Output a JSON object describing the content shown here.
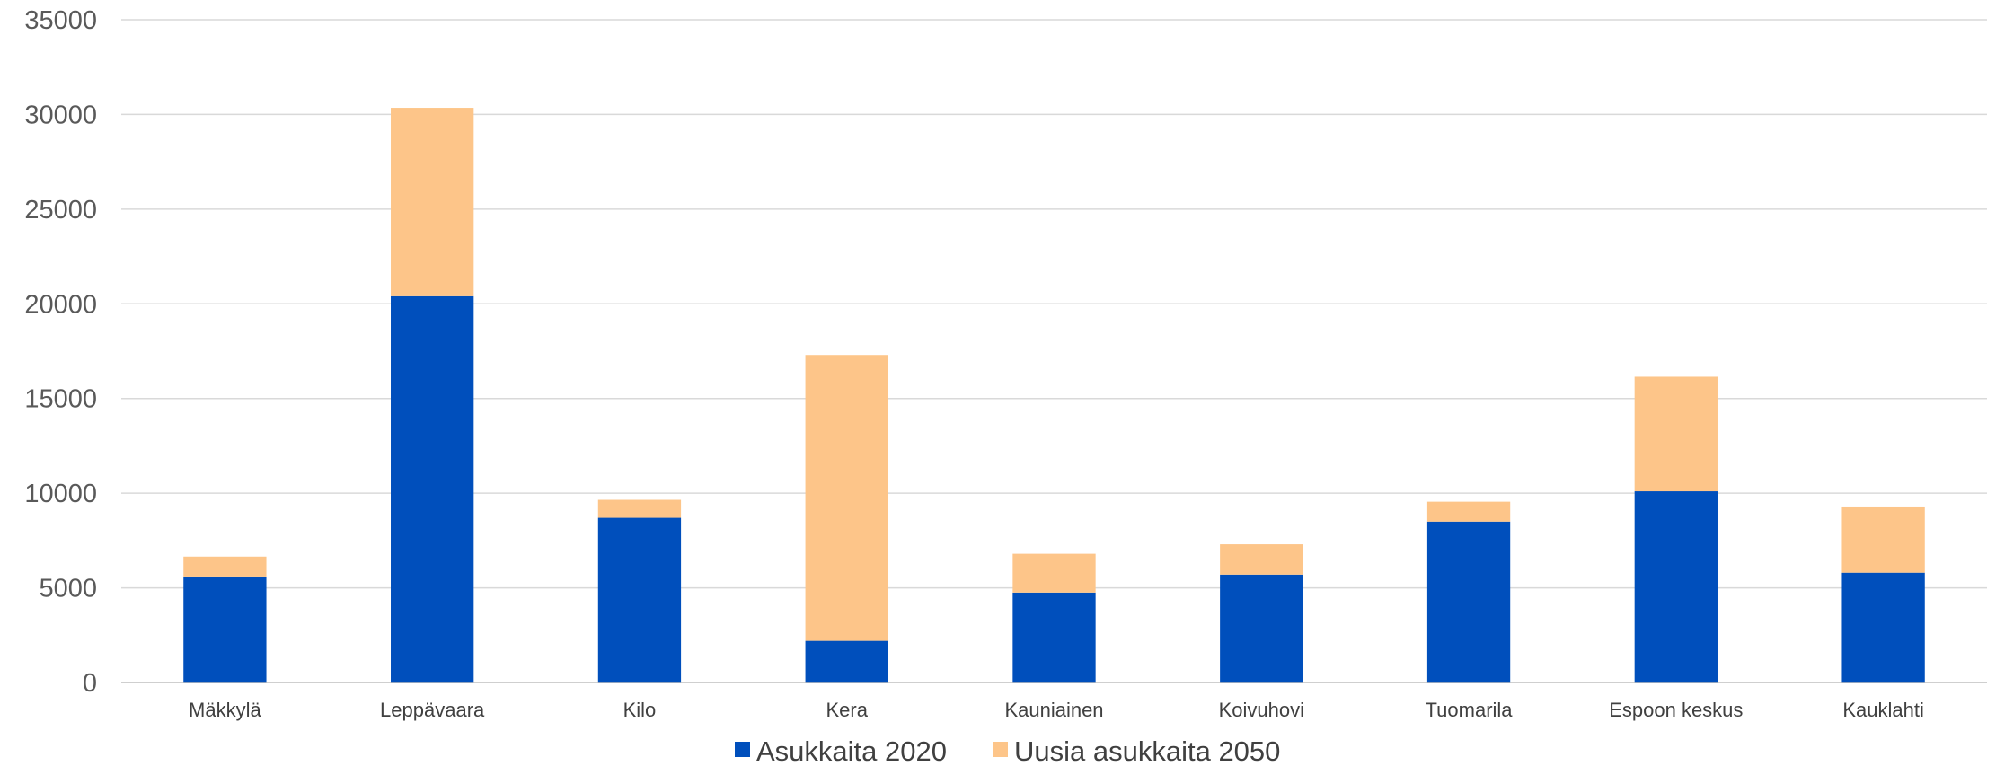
{
  "chart_data": {
    "type": "bar",
    "stacked": true,
    "categories": [
      "Mäkkylä",
      "Leppävaara",
      "Kilo",
      "Kera",
      "Kauniainen",
      "Koivuhovi",
      "Tuomarila",
      "Espoon keskus",
      "Kauklahti"
    ],
    "series": [
      {
        "name": "Asukkaita 2020",
        "color": "#004fbc",
        "values": [
          5600,
          20400,
          8700,
          2200,
          4750,
          5700,
          8500,
          10100,
          5800
        ]
      },
      {
        "name": "Uusia asukkaita 2050",
        "color": "#fdc589",
        "values": [
          1050,
          9950,
          950,
          15100,
          2050,
          1600,
          1050,
          6050,
          3450
        ]
      }
    ],
    "ylim": [
      0,
      35000
    ],
    "yticks": [
      "0",
      "5000",
      "10000",
      "15000",
      "20000",
      "25000",
      "30000",
      "35000"
    ],
    "grid": true,
    "legend": "bottom"
  }
}
